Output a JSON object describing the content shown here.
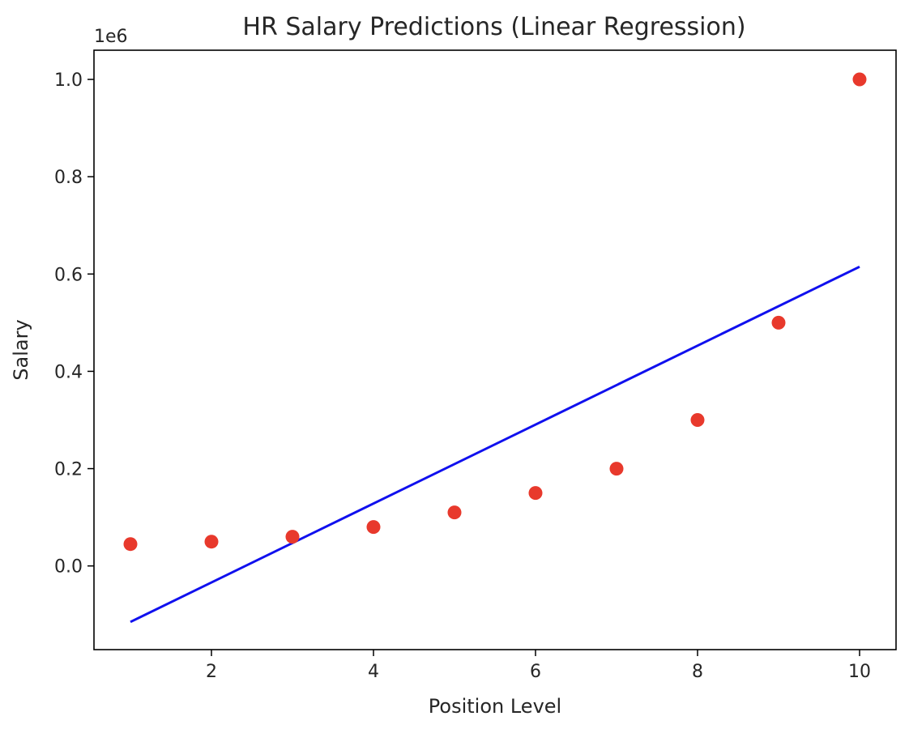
{
  "chart_data": {
    "type": "scatter",
    "title": "HR Salary Predictions (Linear Regression)",
    "xlabel": "Position Level",
    "ylabel": "Salary",
    "y_offset_label": "1e6",
    "xlim": [
      0.55,
      10.45
    ],
    "ylim": [
      -0.172,
      1.06
    ],
    "x_ticks": [
      2,
      4,
      6,
      8,
      10
    ],
    "x_tick_labels": [
      "2",
      "4",
      "6",
      "8",
      "10"
    ],
    "y_ticks": [
      0.0,
      0.2,
      0.4,
      0.6,
      0.8,
      1.0
    ],
    "y_tick_labels": [
      "0.0",
      "0.2",
      "0.4",
      "0.6",
      "0.8",
      "1.0"
    ],
    "grid": false,
    "series": [
      {
        "kind": "scatter",
        "color": "#e8392c",
        "x": [
          1,
          2,
          3,
          4,
          5,
          6,
          7,
          8,
          9,
          10
        ],
        "y": [
          0.045,
          0.05,
          0.06,
          0.08,
          0.11,
          0.15,
          0.2,
          0.3,
          0.5,
          1.0
        ]
      },
      {
        "kind": "line",
        "color": "#1010ee",
        "x": [
          1,
          10
        ],
        "y": [
          -0.115,
          0.615
        ]
      }
    ]
  }
}
